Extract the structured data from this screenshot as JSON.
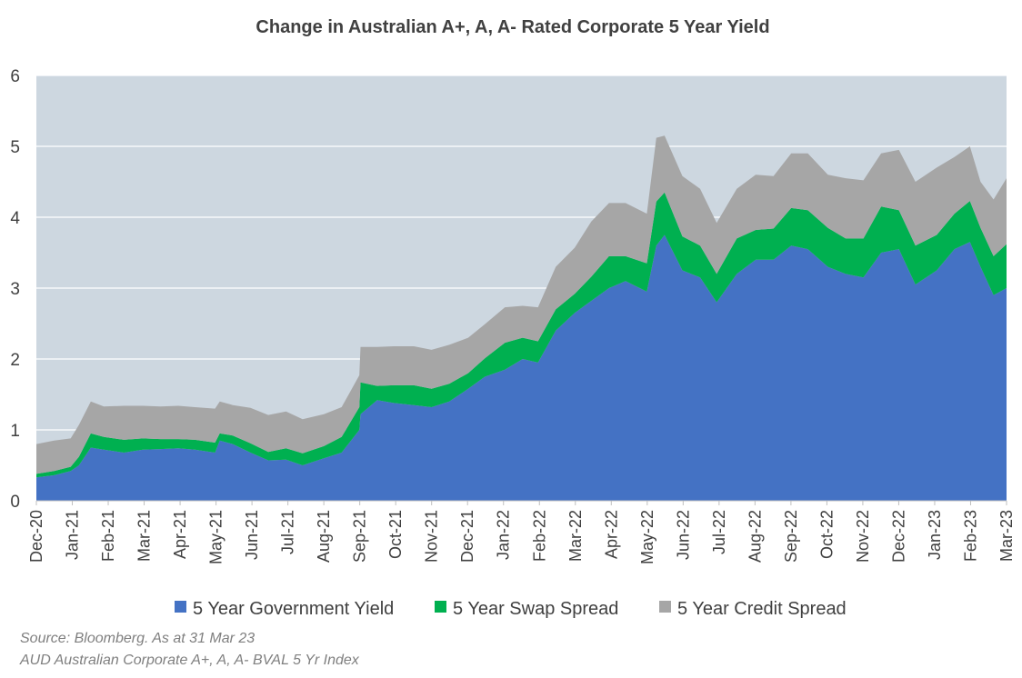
{
  "chart_data": {
    "type": "area",
    "stacked": true,
    "title": "Change in Australian A+, A, A- Rated Corporate 5 Year Yield",
    "xlabel": "",
    "ylabel": "",
    "ylim": [
      0,
      6
    ],
    "yticks": [
      "0",
      "1",
      "2",
      "3",
      "4",
      "5",
      "6"
    ],
    "grid": true,
    "legend_position": "bottom",
    "x_tick_labels": [
      "Dec-20",
      "Jan-21",
      "Feb-21",
      "Mar-21",
      "Apr-21",
      "May-21",
      "Jun-21",
      "Jul-21",
      "Aug-21",
      "Sep-21",
      "Oct-21",
      "Nov-21",
      "Dec-21",
      "Jan-22",
      "Feb-22",
      "Mar-22",
      "Apr-22",
      "May-22",
      "Jun-22",
      "Jul-22",
      "Aug-22",
      "Sep-22",
      "Oct-22",
      "Nov-22",
      "Dec-22",
      "Jan-23",
      "Feb-23",
      "Mar-23"
    ],
    "x": [
      "2020-12-31",
      "2021-01-15",
      "2021-01-29",
      "2021-02-05",
      "2021-02-15",
      "2021-02-26",
      "2021-03-15",
      "2021-03-31",
      "2021-04-15",
      "2021-04-30",
      "2021-05-14",
      "2021-05-31",
      "2021-06-04",
      "2021-06-15",
      "2021-06-30",
      "2021-07-15",
      "2021-07-30",
      "2021-08-13",
      "2021-08-31",
      "2021-09-15",
      "2021-09-30",
      "2021-10-01",
      "2021-10-15",
      "2021-10-29",
      "2021-11-15",
      "2021-11-30",
      "2021-12-15",
      "2021-12-31",
      "2022-01-14",
      "2022-01-31",
      "2022-02-15",
      "2022-02-28",
      "2022-03-15",
      "2022-03-31",
      "2022-04-14",
      "2022-04-29",
      "2022-05-13",
      "2022-05-31",
      "2022-06-08",
      "2022-06-15",
      "2022-06-30",
      "2022-07-15",
      "2022-07-29",
      "2022-08-15",
      "2022-08-31",
      "2022-09-15",
      "2022-09-30",
      "2022-10-14",
      "2022-10-31",
      "2022-11-15",
      "2022-11-30",
      "2022-12-15",
      "2022-12-30",
      "2023-01-13",
      "2023-01-31",
      "2023-02-15",
      "2023-02-28",
      "2023-03-09",
      "2023-03-20",
      "2023-03-31"
    ],
    "series": [
      {
        "name": "5 Year Government Yield",
        "color": "#4472c4",
        "values": [
          0.33,
          0.36,
          0.42,
          0.5,
          0.75,
          0.72,
          0.68,
          0.72,
          0.73,
          0.74,
          0.72,
          0.68,
          0.85,
          0.8,
          0.68,
          0.57,
          0.58,
          0.5,
          0.6,
          0.68,
          1.0,
          1.22,
          1.42,
          1.38,
          1.35,
          1.32,
          1.4,
          1.58,
          1.75,
          1.85,
          2.0,
          1.95,
          2.4,
          2.65,
          2.82,
          3.0,
          3.1,
          2.95,
          3.6,
          3.75,
          3.25,
          3.15,
          2.8,
          3.2,
          3.4,
          3.4,
          3.6,
          3.55,
          3.3,
          3.2,
          3.15,
          3.5,
          3.55,
          3.05,
          3.25,
          3.55,
          3.65,
          3.3,
          2.9,
          3.0
        ]
      },
      {
        "name": "5 Year Swap Spread",
        "color": "#00b050",
        "values": [
          0.05,
          0.06,
          0.06,
          0.12,
          0.2,
          0.18,
          0.18,
          0.16,
          0.14,
          0.13,
          0.14,
          0.14,
          0.1,
          0.12,
          0.13,
          0.12,
          0.16,
          0.17,
          0.17,
          0.22,
          0.32,
          0.45,
          0.2,
          0.25,
          0.28,
          0.26,
          0.25,
          0.22,
          0.26,
          0.38,
          0.3,
          0.3,
          0.3,
          0.27,
          0.34,
          0.45,
          0.35,
          0.4,
          0.62,
          0.6,
          0.48,
          0.45,
          0.4,
          0.5,
          0.42,
          0.44,
          0.53,
          0.55,
          0.55,
          0.5,
          0.55,
          0.65,
          0.55,
          0.55,
          0.5,
          0.5,
          0.58,
          0.55,
          0.55,
          0.62
        ]
      },
      {
        "name": "5 Year Credit Spread",
        "color": "#a6a6a6",
        "values": [
          0.42,
          0.43,
          0.4,
          0.45,
          0.45,
          0.43,
          0.48,
          0.46,
          0.46,
          0.47,
          0.46,
          0.48,
          0.45,
          0.43,
          0.5,
          0.52,
          0.52,
          0.48,
          0.45,
          0.42,
          0.45,
          0.5,
          0.55,
          0.55,
          0.55,
          0.55,
          0.55,
          0.5,
          0.48,
          0.5,
          0.45,
          0.48,
          0.6,
          0.65,
          0.78,
          0.75,
          0.75,
          0.7,
          0.9,
          0.8,
          0.85,
          0.8,
          0.72,
          0.7,
          0.78,
          0.74,
          0.77,
          0.8,
          0.75,
          0.85,
          0.82,
          0.75,
          0.85,
          0.9,
          0.95,
          0.8,
          0.77,
          0.65,
          0.8,
          0.93
        ]
      }
    ]
  },
  "footnote": {
    "source": "Source: Bloomberg. As at 31 Mar 23",
    "index": "AUD Australian Corporate A+, A, A- BVAL 5 Yr Index"
  }
}
